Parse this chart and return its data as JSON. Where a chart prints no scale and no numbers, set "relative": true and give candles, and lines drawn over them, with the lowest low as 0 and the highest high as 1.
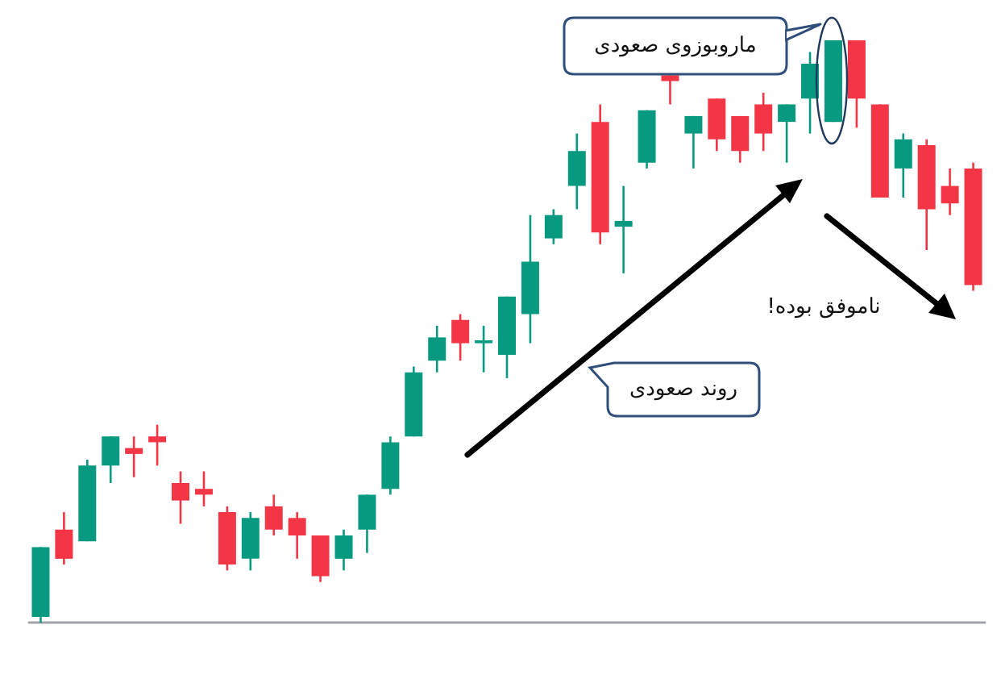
{
  "chart_data": {
    "type": "candlestick",
    "relative": true,
    "grid": false,
    "categories": [
      null,
      null,
      null,
      null,
      null,
      null,
      null,
      null,
      null,
      null,
      null,
      null,
      null,
      null,
      null,
      null,
      null,
      null,
      null,
      null,
      null,
      null,
      null,
      null,
      null,
      null,
      null,
      null,
      null,
      null,
      null,
      null,
      null,
      null,
      null,
      null,
      null,
      null,
      null,
      null,
      null
    ],
    "ohlc": [
      [
        0.01,
        0.13,
        0,
        0.13
      ],
      [
        0.16,
        0.19,
        0.1,
        0.11
      ],
      [
        0.14,
        0.28,
        0.14,
        0.27
      ],
      [
        0.27,
        0.32,
        0.24,
        0.32
      ],
      [
        0.3,
        0.32,
        0.25,
        0.29
      ],
      [
        0.32,
        0.34,
        0.27,
        0.31
      ],
      [
        0.24,
        0.26,
        0.17,
        0.21
      ],
      [
        0.23,
        0.26,
        0.2,
        0.22
      ],
      [
        0.19,
        0.2,
        0.09,
        0.1
      ],
      [
        0.11,
        0.19,
        0.09,
        0.18
      ],
      [
        0.2,
        0.22,
        0.15,
        0.16
      ],
      [
        0.18,
        0.19,
        0.11,
        0.15
      ],
      [
        0.15,
        0.15,
        0.07,
        0.08
      ],
      [
        0.11,
        0.16,
        0.09,
        0.15
      ],
      [
        0.16,
        0.22,
        0.12,
        0.22
      ],
      [
        0.23,
        0.32,
        0.22,
        0.31
      ],
      [
        0.32,
        0.44,
        0.32,
        0.43
      ],
      [
        0.45,
        0.51,
        0.43,
        0.49
      ],
      [
        0.52,
        0.53,
        0.45,
        0.48
      ],
      [
        0.48,
        0.51,
        0.43,
        0.485
      ],
      [
        0.46,
        0.56,
        0.42,
        0.56
      ],
      [
        0.53,
        0.7,
        0.48,
        0.62
      ],
      [
        0.66,
        0.71,
        0.65,
        0.7
      ],
      [
        0.75,
        0.84,
        0.71,
        0.81
      ],
      [
        0.86,
        0.89,
        0.65,
        0.67
      ],
      [
        0.68,
        0.75,
        0.6,
        0.69
      ],
      [
        0.79,
        0.88,
        0.78,
        0.88
      ],
      [
        0.94,
        0.94,
        0.89,
        0.93
      ],
      [
        0.84,
        0.87,
        0.78,
        0.87
      ],
      [
        0.9,
        0.9,
        0.81,
        0.83
      ],
      [
        0.87,
        0.87,
        0.79,
        0.81
      ],
      [
        0.89,
        0.91,
        0.81,
        0.84
      ],
      [
        0.86,
        0.89,
        0.79,
        0.89
      ],
      [
        0.9,
        0.98,
        0.84,
        0.96
      ],
      [
        0.86,
        1,
        0.86,
        1
      ],
      [
        1,
        1,
        0.85,
        0.9
      ],
      [
        0.89,
        0.89,
        0.73,
        0.73
      ],
      [
        0.78,
        0.84,
        0.73,
        0.83
      ],
      [
        0.82,
        0.83,
        0.64,
        0.71
      ],
      [
        0.75,
        0.78,
        0.7,
        0.72
      ],
      [
        0.78,
        0.79,
        0.57,
        0.58
      ]
    ],
    "colors": [
      "#089981",
      "#f23645",
      "#089981",
      "#089981",
      "#f23645",
      "#f23645",
      "#f23645",
      "#f23645",
      "#f23645",
      "#089981",
      "#f23645",
      "#f23645",
      "#f23645",
      "#089981",
      "#089981",
      "#089981",
      "#089981",
      "#089981",
      "#f23645",
      "#089981",
      "#089981",
      "#089981",
      "#089981",
      "#089981",
      "#f23645",
      "#089981",
      "#089981",
      "#f23645",
      "#089981",
      "#f23645",
      "#f23645",
      "#f23645",
      "#089981",
      "#089981",
      "#089981",
      "#f23645",
      "#f23645",
      "#089981",
      "#f23645",
      "#f23645",
      "#f23645"
    ],
    "annotations": [
      "ماروبوزوی صعودی",
      "روند صعودی",
      "ناموفق بوده!"
    ]
  }
}
